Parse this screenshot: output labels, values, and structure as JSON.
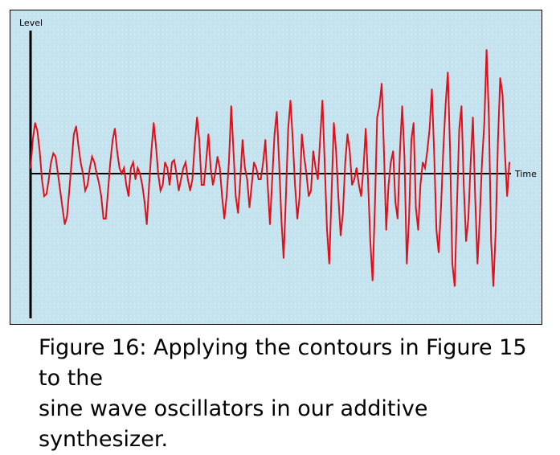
{
  "caption": {
    "line1": "Figure 16: Applying the contours in Figure 15 to the",
    "line2": "sine wave oscillators in our additive synthesizer."
  },
  "colors": {
    "plot_background": "#c5e3ef",
    "grid_dots": "#ffffff",
    "frame": "#000000",
    "signal": "#e0101a",
    "axes": "#000000"
  },
  "chart_data": {
    "type": "line",
    "title": "",
    "xlabel": "Time",
    "ylabel": "Level",
    "grid": true,
    "legend": "none",
    "xlim": [
      0,
      200
    ],
    "ylim": [
      -1.0,
      1.0
    ],
    "series": [
      {
        "values": [
          0.05,
          0.3,
          0.45,
          0.38,
          0.2,
          -0.05,
          -0.2,
          -0.18,
          -0.05,
          0.1,
          0.18,
          0.15,
          0.0,
          -0.15,
          -0.3,
          -0.45,
          -0.38,
          -0.15,
          0.1,
          0.35,
          0.42,
          0.25,
          0.1,
          0.0,
          -0.15,
          -0.1,
          0.05,
          0.15,
          0.1,
          0.0,
          -0.08,
          -0.2,
          -0.4,
          -0.4,
          -0.15,
          0.1,
          0.3,
          0.4,
          0.2,
          0.05,
          0.0,
          0.05,
          -0.1,
          -0.2,
          0.05,
          0.1,
          -0.05,
          0.05,
          0.0,
          -0.1,
          -0.25,
          -0.45,
          -0.1,
          0.2,
          0.45,
          0.25,
          0.0,
          -0.15,
          -0.1,
          0.1,
          0.05,
          -0.1,
          0.1,
          0.12,
          0.0,
          -0.15,
          -0.05,
          0.05,
          0.1,
          -0.05,
          -0.15,
          -0.05,
          0.25,
          0.5,
          0.3,
          -0.1,
          -0.1,
          0.1,
          0.35,
          0.05,
          -0.1,
          0.0,
          0.15,
          0.05,
          -0.2,
          -0.4,
          -0.2,
          0.1,
          0.6,
          0.2,
          -0.2,
          -0.35,
          -0.05,
          0.3,
          0.05,
          -0.05,
          -0.3,
          -0.1,
          0.1,
          0.05,
          -0.05,
          -0.05,
          0.1,
          0.3,
          -0.1,
          -0.45,
          -0.05,
          0.35,
          0.55,
          0.1,
          -0.4,
          -0.75,
          -0.2,
          0.4,
          0.65,
          0.3,
          -0.1,
          -0.4,
          -0.2,
          0.35,
          0.15,
          0.0,
          -0.2,
          -0.15,
          0.2,
          0.05,
          -0.05,
          0.3,
          0.65,
          0.1,
          -0.5,
          -0.8,
          -0.2,
          0.45,
          0.2,
          -0.2,
          -0.55,
          -0.35,
          0.1,
          0.35,
          0.2,
          -0.1,
          -0.05,
          0.05,
          -0.1,
          -0.2,
          0.05,
          0.4,
          -0.05,
          -0.6,
          -0.95,
          -0.3,
          0.5,
          0.6,
          0.8,
          0.2,
          -0.5,
          -0.1,
          0.1,
          0.2,
          -0.25,
          -0.4,
          0.2,
          0.6,
          0.15,
          -0.8,
          -0.4,
          0.3,
          0.45,
          -0.3,
          -0.5,
          -0.1,
          0.1,
          0.05,
          0.2,
          0.4,
          0.75,
          0.2,
          -0.5,
          -0.7,
          -0.3,
          0.2,
          0.6,
          0.9,
          0.2,
          -0.8,
          -1.0,
          -0.3,
          0.4,
          0.6,
          -0.1,
          -0.6,
          -0.4,
          0.1,
          0.5,
          -0.2,
          -0.8,
          -0.4,
          0.1,
          0.45,
          1.1,
          0.5,
          -0.6,
          -1.0,
          -0.5,
          0.3,
          0.85,
          0.7,
          0.2,
          -0.2,
          0.1
        ]
      }
    ]
  }
}
